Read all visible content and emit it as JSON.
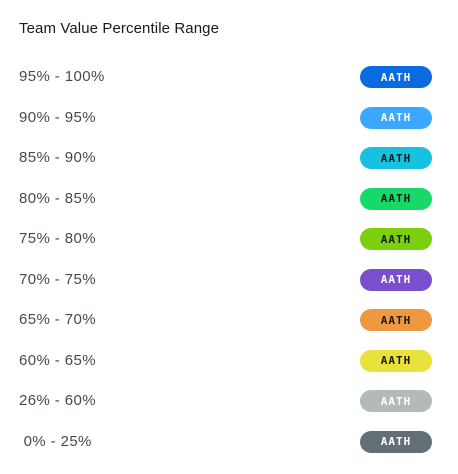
{
  "panel": {
    "title": "Team Value Percentile Range"
  },
  "ranges": [
    {
      "label": "95% - 100%",
      "badge": "AATH",
      "color": "#0a6be0",
      "text_color": "#ffffff"
    },
    {
      "label": "90% - 95%",
      "badge": "AATH",
      "color": "#3aa8ff",
      "text_color": "#ffffff"
    },
    {
      "label": "85% - 90%",
      "badge": "AATH",
      "color": "#16c2e0",
      "text_color": "#1a1a1a"
    },
    {
      "label": "80% - 85%",
      "badge": "AATH",
      "color": "#16d96a",
      "text_color": "#1a1a1a"
    },
    {
      "label": "75% - 80%",
      "badge": "AATH",
      "color": "#7bcf0f",
      "text_color": "#1a1a1a"
    },
    {
      "label": "70% - 75%",
      "badge": "AATH",
      "color": "#7a4fcc",
      "text_color": "#ffffff"
    },
    {
      "label": "65% - 70%",
      "badge": "AATH",
      "color": "#ee9840",
      "text_color": "#1a1a1a"
    },
    {
      "label": "60% - 65%",
      "badge": "AATH",
      "color": "#e8e23a",
      "text_color": "#1a1a1a"
    },
    {
      "label": "26% - 60%",
      "badge": "AATH",
      "color": "#b4b9bc",
      "text_color": "#ffffff"
    },
    {
      "label": " 0% - 25%",
      "badge": "AATH",
      "color": "#636e75",
      "text_color": "#ffffff"
    }
  ]
}
